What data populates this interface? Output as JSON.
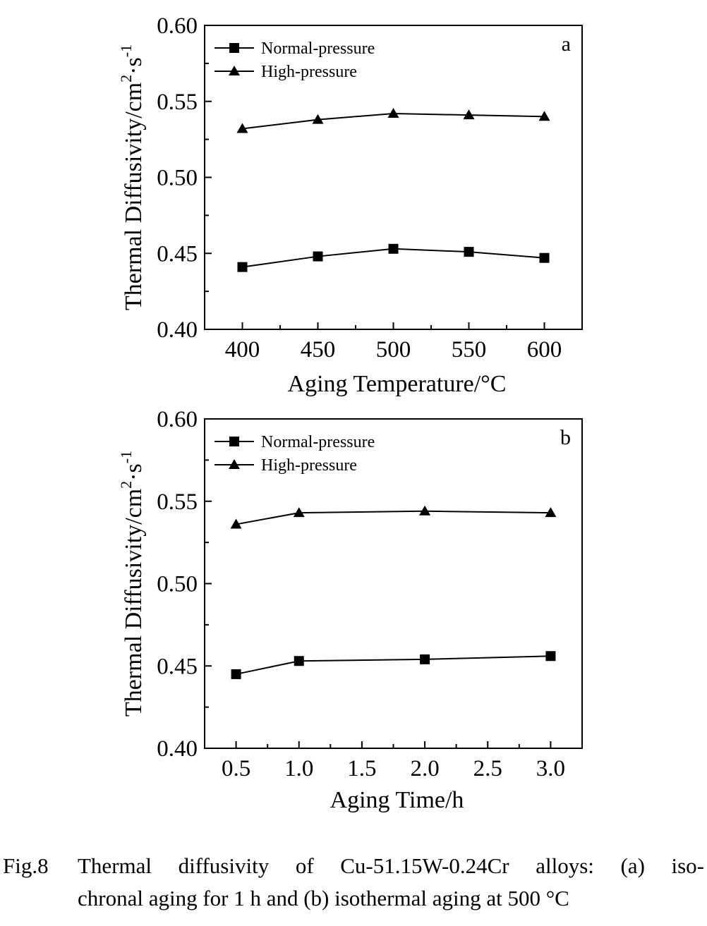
{
  "chart_data": [
    {
      "type": "line",
      "panel_label": "a",
      "xlabel": "Aging Temperature/°C",
      "ylabel_base": "Thermal Diffusivity/cm",
      "ylabel_sup1": "2",
      "ylabel_mid": "·s",
      "ylabel_sup2": "-1",
      "xlim": [
        375,
        625
      ],
      "ylim": [
        0.4,
        0.6
      ],
      "xticks": [
        400,
        450,
        500,
        550,
        600
      ],
      "xtick_labels": [
        "400",
        "450",
        "500",
        "550",
        "600"
      ],
      "yticks": [
        0.4,
        0.45,
        0.5,
        0.55,
        0.6
      ],
      "ytick_labels": [
        "0.40",
        "0.45",
        "0.50",
        "0.55",
        "0.60"
      ],
      "legend_position": "top-left",
      "series": [
        {
          "name": "Normal-pressure",
          "marker": "square",
          "x": [
            400,
            450,
            500,
            550,
            600
          ],
          "values": [
            0.441,
            0.448,
            0.453,
            0.451,
            0.447
          ]
        },
        {
          "name": "High-pressure",
          "marker": "triangle",
          "x": [
            400,
            450,
            500,
            550,
            600
          ],
          "values": [
            0.532,
            0.538,
            0.542,
            0.541,
            0.54
          ]
        }
      ]
    },
    {
      "type": "line",
      "panel_label": "b",
      "xlabel": "Aging Time/h",
      "ylabel_base": "Thermal Diffusivity/cm",
      "ylabel_sup1": "2",
      "ylabel_mid": "·s",
      "ylabel_sup2": "-1",
      "xlim": [
        0.25,
        3.25
      ],
      "ylim": [
        0.4,
        0.6
      ],
      "xticks": [
        0.5,
        1.0,
        1.5,
        2.0,
        2.5,
        3.0
      ],
      "xtick_labels": [
        "0.5",
        "1.0",
        "1.5",
        "2.0",
        "2.5",
        "3.0"
      ],
      "yticks": [
        0.4,
        0.45,
        0.5,
        0.55,
        0.6
      ],
      "ytick_labels": [
        "0.40",
        "0.45",
        "0.50",
        "0.55",
        "0.60"
      ],
      "legend_position": "top-left",
      "series": [
        {
          "name": "Normal-pressure",
          "marker": "square",
          "x": [
            0.5,
            1.0,
            2.0,
            3.0
          ],
          "values": [
            0.445,
            0.453,
            0.454,
            0.456
          ]
        },
        {
          "name": "High-pressure",
          "marker": "triangle",
          "x": [
            0.5,
            1.0,
            2.0,
            3.0
          ],
          "values": [
            0.536,
            0.543,
            0.544,
            0.543
          ]
        }
      ]
    }
  ],
  "caption": {
    "label": "Fig.8",
    "line1": "Thermal diffusivity of Cu-51.15W-0.24Cr alloys: (a) iso-",
    "line2": "chronal aging for 1 h and (b) isothermal aging at 500 °C"
  }
}
